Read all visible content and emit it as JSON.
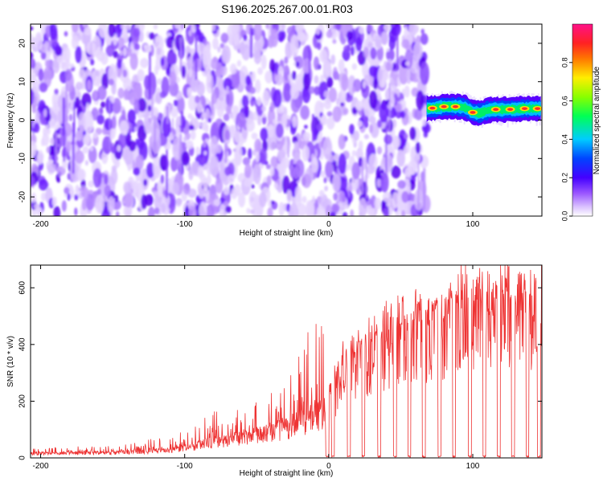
{
  "title": "S196.2025.267.00.01.R03",
  "chart_data": [
    {
      "type": "heatmap",
      "title": "S196.2025.267.00.01.R03",
      "xlabel": "Height of straight line (km)",
      "ylabel": "Frequency (Hz)",
      "xlim": [
        -207,
        148
      ],
      "ylim": [
        -25,
        25
      ],
      "xticks": [
        -200,
        -100,
        0,
        100
      ],
      "xtick_labels": [
        "-200",
        "-100",
        "0",
        "100"
      ],
      "yticks": [
        -20,
        -10,
        0,
        10,
        20
      ],
      "ytick_labels": [
        "-20",
        "-10",
        "0",
        "10",
        "20"
      ],
      "noise_region_x": [
        -207,
        68
      ],
      "signal_region_x": [
        68,
        148
      ],
      "signal_track": {
        "x": [
          68,
          75,
          80,
          85,
          90,
          95,
          100,
          105,
          110,
          115,
          120,
          125,
          130,
          135,
          140,
          145,
          148
        ],
        "frequency_hz": [
          3.0,
          3.2,
          3.5,
          3.5,
          3.5,
          3.2,
          2.0,
          1.8,
          2.5,
          2.8,
          2.7,
          2.8,
          2.8,
          3.0,
          3.0,
          3.0,
          3.0
        ],
        "peak_x": [
          72,
          80,
          88,
          100,
          116,
          126,
          136,
          145
        ]
      },
      "colorbar": {
        "label": "Normalized spectral amplitude",
        "range": [
          0.0,
          1.0
        ],
        "ticks": [
          0.0,
          0.2,
          0.4,
          0.6,
          0.8
        ],
        "tick_labels": [
          "0.0",
          "0.2",
          "0.4",
          "0.6",
          "0.8"
        ]
      }
    },
    {
      "type": "line",
      "xlabel": "Height of straight line (km)",
      "ylabel": "SNR (10 * v/v)",
      "xlim": [
        -207,
        148
      ],
      "ylim": [
        0,
        680
      ],
      "xticks": [
        -200,
        -100,
        0,
        100
      ],
      "xtick_labels": [
        "-200",
        "-100",
        "0",
        "100"
      ],
      "yticks": [
        0,
        200,
        400,
        600
      ],
      "ytick_labels": [
        "0",
        "200",
        "400",
        "600"
      ],
      "color": "#ee3333",
      "envelope": {
        "x": [
          -207,
          -180,
          -150,
          -130,
          -110,
          -100,
          -90,
          -80,
          -70,
          -60,
          -50,
          -40,
          -30,
          -20,
          -10,
          0,
          10,
          20,
          30,
          40,
          50,
          60,
          70,
          80,
          90,
          100,
          110,
          120,
          130,
          140,
          148
        ],
        "baseline": [
          15,
          18,
          20,
          25,
          30,
          40,
          50,
          60,
          70,
          80,
          90,
          100,
          110,
          140,
          160,
          200,
          330,
          380,
          400,
          420,
          470,
          480,
          480,
          470,
          560,
          560,
          560,
          560,
          540,
          550,
          560
        ],
        "spike_max": [
          35,
          40,
          45,
          60,
          80,
          100,
          130,
          180,
          170,
          190,
          200,
          240,
          330,
          380,
          500,
          570,
          420,
          460,
          560,
          560,
          570,
          560,
          560,
          620,
          670,
          680,
          680,
          680,
          670,
          680,
          660
        ]
      },
      "dropouts_x": [
        -1,
        3,
        14,
        24,
        35,
        46,
        56,
        66,
        77,
        87,
        98,
        108,
        118,
        128,
        138,
        146
      ]
    }
  ]
}
